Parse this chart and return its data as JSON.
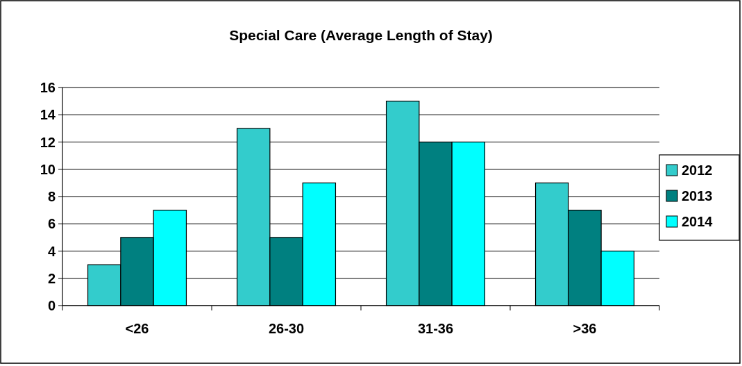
{
  "chart_data": {
    "type": "bar",
    "title": "Special Care (Average Length of Stay)",
    "categories": [
      "<26",
      "26-30",
      "31-36",
      ">36"
    ],
    "series": [
      {
        "name": "2012",
        "color": "#33cccc",
        "values": [
          3,
          13,
          15,
          9
        ]
      },
      {
        "name": "2013",
        "color": "#008080",
        "values": [
          5,
          5,
          12,
          7
        ]
      },
      {
        "name": "2014",
        "color": "#00ffff",
        "values": [
          7,
          9,
          12,
          4
        ]
      }
    ],
    "ylim": [
      0,
      16
    ],
    "yticks": [
      0,
      2,
      4,
      6,
      8,
      10,
      12,
      14,
      16
    ],
    "grid": "y",
    "legend": "right"
  }
}
